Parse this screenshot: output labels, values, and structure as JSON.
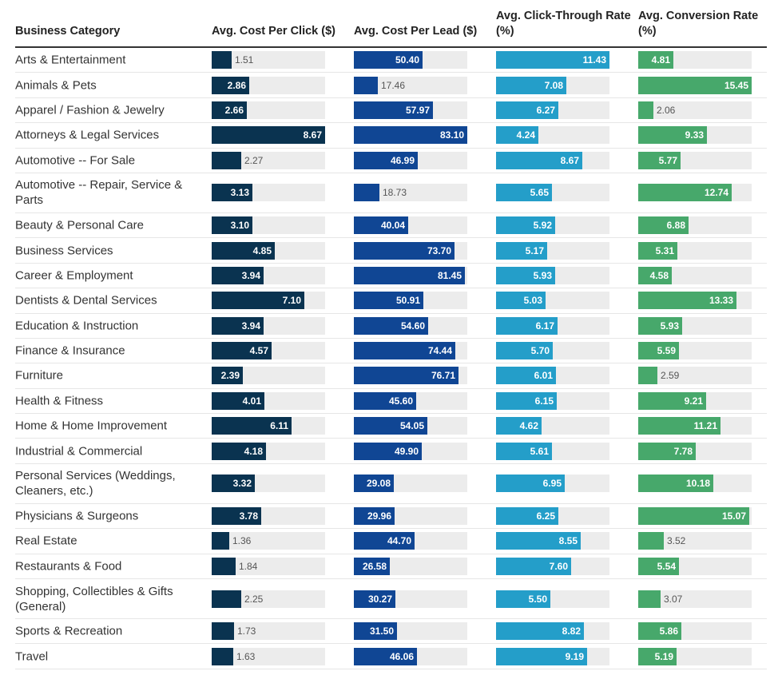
{
  "chart_data": {
    "type": "table",
    "columns": [
      {
        "key": "category",
        "label": "Business Category"
      },
      {
        "key": "cpc",
        "label": "Avg. Cost Per Click ($)",
        "color": "#0a3350"
      },
      {
        "key": "cpl",
        "label": "Avg. Cost Per Lead ($)",
        "color": "#104694"
      },
      {
        "key": "ctr",
        "label": "Avg. Click-Through Rate (%)",
        "color": "#249ec9"
      },
      {
        "key": "cvr",
        "label": "Avg. Conversion Rate (%)",
        "color": "#47a86b"
      }
    ],
    "track_color": "#ececec",
    "rows": [
      {
        "category": "Arts & Entertainment",
        "cpc": 1.51,
        "cpl": 50.4,
        "ctr": 11.43,
        "cvr": 4.81
      },
      {
        "category": "Animals & Pets",
        "cpc": 2.86,
        "cpl": 17.46,
        "ctr": 7.08,
        "cvr": 15.45
      },
      {
        "category": "Apparel / Fashion & Jewelry",
        "cpc": 2.66,
        "cpl": 57.97,
        "ctr": 6.27,
        "cvr": 2.06
      },
      {
        "category": "Attorneys & Legal Services",
        "cpc": 8.67,
        "cpl": 83.1,
        "ctr": 4.24,
        "cvr": 9.33
      },
      {
        "category": "Automotive -- For Sale",
        "cpc": 2.27,
        "cpl": 46.99,
        "ctr": 8.67,
        "cvr": 5.77
      },
      {
        "category": "Automotive -- Repair, Service & Parts",
        "cpc": 3.13,
        "cpl": 18.73,
        "ctr": 5.65,
        "cvr": 12.74
      },
      {
        "category": "Beauty & Personal Care",
        "cpc": 3.1,
        "cpl": 40.04,
        "ctr": 5.92,
        "cvr": 6.88
      },
      {
        "category": "Business Services",
        "cpc": 4.85,
        "cpl": 73.7,
        "ctr": 5.17,
        "cvr": 5.31
      },
      {
        "category": "Career & Employment",
        "cpc": 3.94,
        "cpl": 81.45,
        "ctr": 5.93,
        "cvr": 4.58
      },
      {
        "category": "Dentists & Dental Services",
        "cpc": 7.1,
        "cpl": 50.91,
        "ctr": 5.03,
        "cvr": 13.33
      },
      {
        "category": "Education & Instruction",
        "cpc": 3.94,
        "cpl": 54.6,
        "ctr": 6.17,
        "cvr": 5.93
      },
      {
        "category": "Finance & Insurance",
        "cpc": 4.57,
        "cpl": 74.44,
        "ctr": 5.7,
        "cvr": 5.59
      },
      {
        "category": "Furniture",
        "cpc": 2.39,
        "cpl": 76.71,
        "ctr": 6.01,
        "cvr": 2.59
      },
      {
        "category": "Health & Fitness",
        "cpc": 4.01,
        "cpl": 45.6,
        "ctr": 6.15,
        "cvr": 9.21
      },
      {
        "category": "Home & Home Improvement",
        "cpc": 6.11,
        "cpl": 54.05,
        "ctr": 4.62,
        "cvr": 11.21
      },
      {
        "category": "Industrial & Commercial",
        "cpc": 4.18,
        "cpl": 49.9,
        "ctr": 5.61,
        "cvr": 7.78
      },
      {
        "category": "Personal Services (Weddings, Cleaners, etc.)",
        "cpc": 3.32,
        "cpl": 29.08,
        "ctr": 6.95,
        "cvr": 10.18
      },
      {
        "category": "Physicians & Surgeons",
        "cpc": 3.78,
        "cpl": 29.96,
        "ctr": 6.25,
        "cvr": 15.07
      },
      {
        "category": "Real Estate",
        "cpc": 1.36,
        "cpl": 44.7,
        "ctr": 8.55,
        "cvr": 3.52
      },
      {
        "category": "Restaurants & Food",
        "cpc": 1.84,
        "cpl": 26.58,
        "ctr": 7.6,
        "cvr": 5.54
      },
      {
        "category": "Shopping, Collectibles & Gifts (General)",
        "cpc": 2.25,
        "cpl": 30.27,
        "ctr": 5.5,
        "cvr": 3.07
      },
      {
        "category": "Sports & Recreation",
        "cpc": 1.73,
        "cpl": 31.5,
        "ctr": 8.82,
        "cvr": 5.86
      },
      {
        "category": "Travel",
        "cpc": 1.63,
        "cpl": 46.06,
        "ctr": 9.19,
        "cvr": 5.19
      }
    ]
  }
}
